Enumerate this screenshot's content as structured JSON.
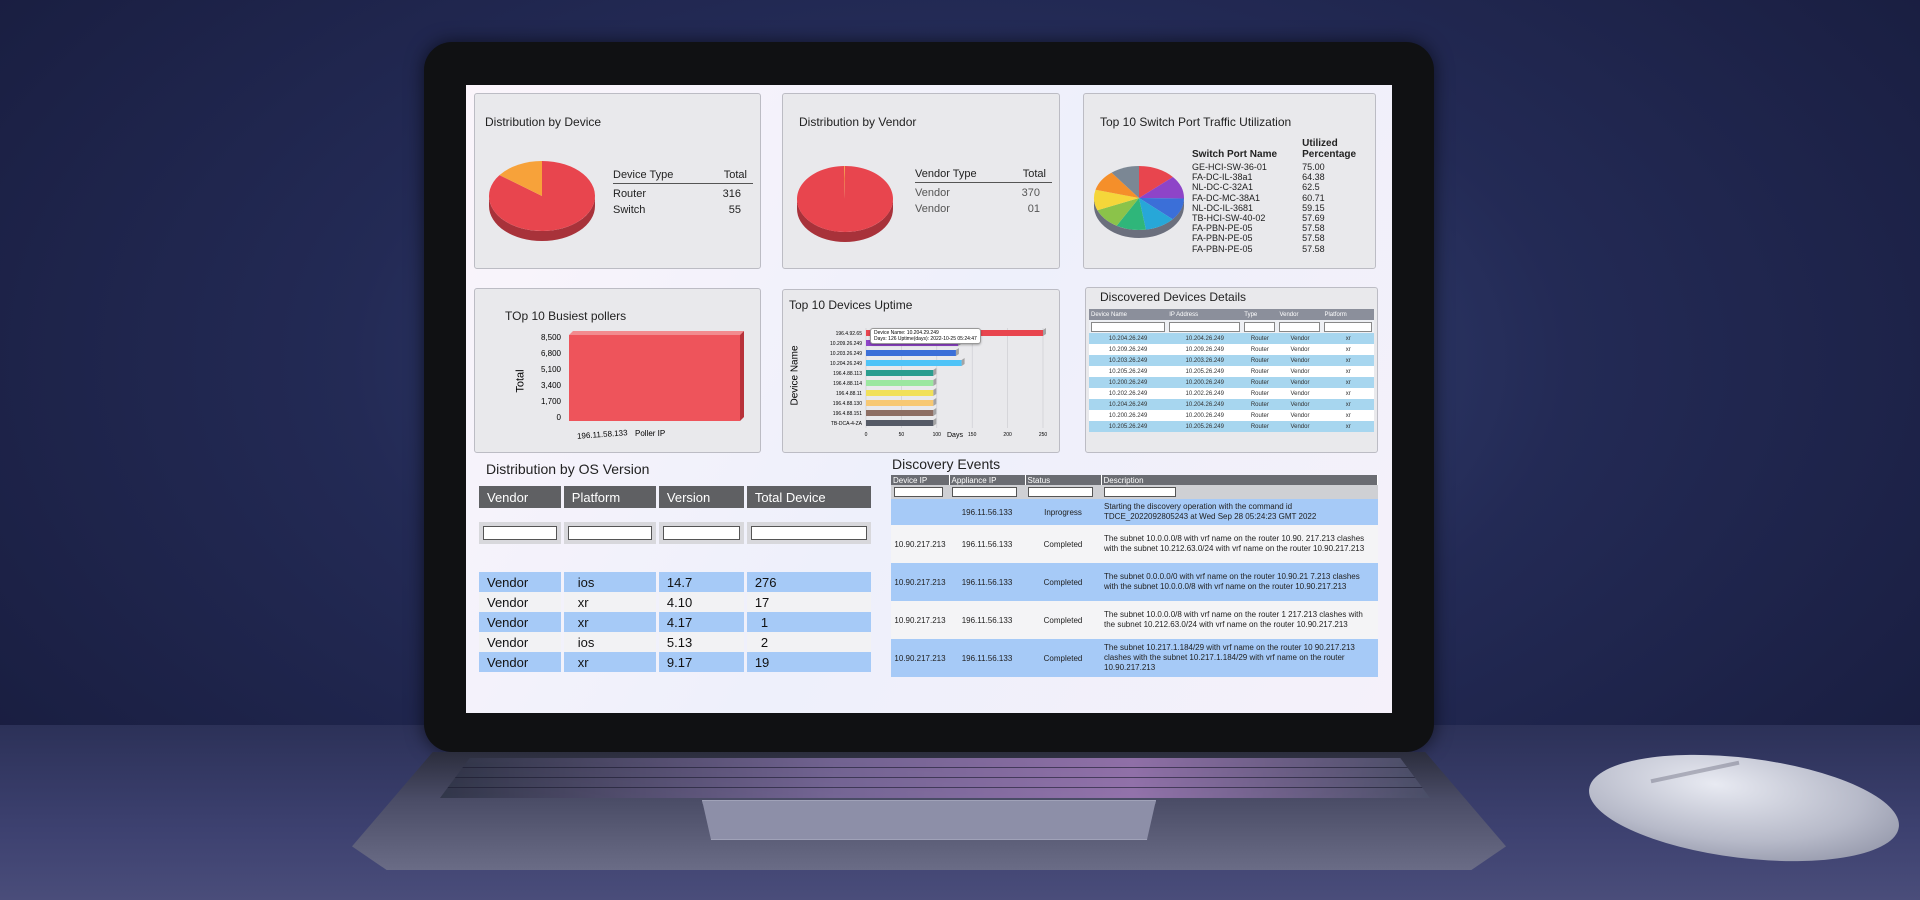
{
  "device_dist": {
    "title": "Distribution by Device",
    "col1": "Device Type",
    "col2": "Total",
    "rows": [
      {
        "type": "Router",
        "total": "316"
      },
      {
        "type": "Switch",
        "total": "55"
      }
    ]
  },
  "vendor_dist": {
    "title": "Distribution by Vendor",
    "col1": "Vendor Type",
    "col2": "Total",
    "rows": [
      {
        "type": "Vendor",
        "total": "370"
      },
      {
        "type": "Vendor",
        "total": "01"
      }
    ]
  },
  "switch_traffic": {
    "title": "Top 10 Switch Port Traffic Utilization",
    "col1": "Switch Port Name",
    "col2a": "Utilized",
    "col2b": "Percentage",
    "rows": [
      {
        "name": "GE-HCI-SW-36-01",
        "pct": "75.00"
      },
      {
        "name": "FA-DC-IL-38a1",
        "pct": "64.38"
      },
      {
        "name": "NL-DC-C-32A1",
        "pct": "62.5"
      },
      {
        "name": "FA-DC-MC-38A1",
        "pct": "60.71"
      },
      {
        "name": "NL-DC-IL-3681",
        "pct": "59.15"
      },
      {
        "name": "TB-HCI-SW-40-02",
        "pct": "57.69"
      },
      {
        "name": "FA-PBN-PE-05",
        "pct": "57.58"
      },
      {
        "name": "FA-PBN-PE-05",
        "pct": "57.58"
      },
      {
        "name": "FA-PBN-PE-05",
        "pct": "57.58"
      }
    ]
  },
  "busiest": {
    "title": "TOp 10 Busiest pollers",
    "ylabel": "Total",
    "xlabel": "Poller IP",
    "yticks": [
      "8,500",
      "6,800",
      "5,100",
      "3,400",
      "1,700",
      "0"
    ],
    "category": "196.11.58.133"
  },
  "uptime": {
    "title": "Top 10 Devices Uptime",
    "ylabel": "Device Name",
    "xlabel": "Days",
    "xticks": [
      "0",
      "50",
      "100",
      "150",
      "200",
      "250"
    ],
    "tooltip_line1": "Device Name: 10.204.29.249",
    "tooltip_line2": "Days: 126 Uptime(days): 2022-10-25 05:24:47"
  },
  "discovered": {
    "title": "Discovered Devices Details",
    "headers": [
      "Device Name",
      "IP Address",
      "Type",
      "Vendor",
      "Platform"
    ],
    "rows": [
      [
        "10.204.26.249",
        "10.204.26.249",
        "Router",
        "Vendor",
        "xr"
      ],
      [
        "10.209.26.249",
        "10.209.26.249",
        "Router",
        "Vendor",
        "xr"
      ],
      [
        "10.203.26.249",
        "10.203.26.249",
        "Router",
        "Vendor",
        "xr"
      ],
      [
        "10.205.26.249",
        "10.205.26.249",
        "Router",
        "Vendor",
        "xr"
      ],
      [
        "10.200.26.249",
        "10.200.26.249",
        "Router",
        "Vendor",
        "xr"
      ],
      [
        "10.202.26.249",
        "10.202.26.249",
        "Router",
        "Vendor",
        "xr"
      ],
      [
        "10.204.26.249",
        "10.204.26.249",
        "Router",
        "Vendor",
        "xr"
      ],
      [
        "10.200.26.249",
        "10.200.26.249",
        "Router",
        "Vendor",
        "xr"
      ],
      [
        "10.205.26.249",
        "10.205.26.249",
        "Router",
        "Vendor",
        "xr"
      ]
    ]
  },
  "os_dist": {
    "title": "Distribution by OS Version",
    "headers": [
      "Vendor",
      "Platform",
      "Version",
      "Total Device"
    ],
    "rows": [
      [
        "Vendor",
        "ios",
        "14.7",
        "276"
      ],
      [
        "Vendor",
        "xr",
        "4.10",
        "17"
      ],
      [
        "Vendor",
        "xr",
        "4.17",
        "1"
      ],
      [
        "Vendor",
        "ios",
        "5.13",
        "2"
      ],
      [
        "Vendor",
        "xr",
        "9.17",
        "19"
      ]
    ]
  },
  "events": {
    "title": "Discovery Events",
    "headers": [
      "Device IP",
      "Appliance IP",
      "Status",
      "Description"
    ],
    "rows": [
      {
        "device": "",
        "appliance": "196.11.56.133",
        "status": "Inprogress",
        "desc": "Starting the discovery operation with the command id TDCE_2022092805243 at Wed Sep 28 05:24:23 GMT 2022"
      },
      {
        "device": "10.90.217.213",
        "appliance": "196.11.56.133",
        "status": "Completed",
        "desc": "The subnet 10.0.0.0/8 with vrf name  on the router 10.90. 217.213 clashes with the subnet 10.212.63.0/24 with vrf name  on the router 10.90.217.213"
      },
      {
        "device": "10.90.217.213",
        "appliance": "196.11.56.133",
        "status": "Completed",
        "desc": "The subnet 0.0.0.0/0 with vrf name  on the router 10.90.21 7.213 clashes with the subnet 10.0.0.0/8 with vrf name  on the router 10.90.217.213"
      },
      {
        "device": "10.90.217.213",
        "appliance": "196.11.56.133",
        "status": "Completed",
        "desc": "The subnet 10.0.0.0/8 with vrf name  on the router 1 217.213 clashes with the subnet 10.212.63.0/24 with vrf name  on the router 10.90.217.213"
      },
      {
        "device": "10.90.217.213",
        "appliance": "196.11.56.133",
        "status": "Completed",
        "desc": "The subnet 10.217.1.184/29 with vrf name  on the router 10 90.217.213 clashes with the subnet 10.217.1.184/29 with vrf name  on the router 10.90.217.213"
      }
    ]
  },
  "chart_data": [
    {
      "type": "pie",
      "title": "Distribution by Device",
      "categories": [
        "Router",
        "Switch"
      ],
      "values": [
        316,
        55
      ],
      "colors": [
        "#e8454e",
        "#f7a23a"
      ]
    },
    {
      "type": "pie",
      "title": "Distribution by Vendor",
      "categories": [
        "Vendor",
        "Vendor"
      ],
      "values": [
        370,
        1
      ],
      "colors": [
        "#e8454e",
        "#f7a23a"
      ]
    },
    {
      "type": "pie",
      "title": "Top 10 Switch Port Traffic Utilization",
      "categories": [
        "GE-HCI-SW-36-01",
        "FA-DC-IL-38a1",
        "NL-DC-C-32A1",
        "FA-DC-MC-38A1",
        "NL-DC-IL-3681",
        "TB-HCI-SW-40-02",
        "FA-PBN-PE-05",
        "FA-PBN-PE-05",
        "FA-PBN-PE-05"
      ],
      "values": [
        75.0,
        64.38,
        62.5,
        60.71,
        59.15,
        57.69,
        57.58,
        57.58,
        57.58
      ],
      "colors": [
        "#e8454e",
        "#8e44c8",
        "#3b6fd8",
        "#27a7d8",
        "#2fb67a",
        "#8bc34a",
        "#f5d63a",
        "#f58f2a",
        "#7b8794"
      ]
    },
    {
      "type": "bar",
      "title": "TOp 10 Busiest pollers",
      "categories": [
        "196.11.58.133"
      ],
      "values": [
        8500
      ],
      "ylim": [
        0,
        8500
      ],
      "xlabel": "Poller IP",
      "ylabel": "Total",
      "colors": [
        "#ee545b"
      ]
    },
    {
      "type": "bar",
      "title": "Top 10 Devices Uptime",
      "orientation": "horizontal",
      "categories": [
        "196.4.92.65",
        "10.209.26.249",
        "10.203.26.249",
        "10.204.26.249",
        "196.4.88.113",
        "196.4.88.114",
        "196.4.88.11",
        "196.4.88.130",
        "196.4.88.151",
        "TB-DCA-4-ZA"
      ],
      "values": [
        250,
        130,
        127,
        135,
        95,
        95,
        95,
        95,
        95,
        95
      ],
      "xlim": [
        0,
        250
      ],
      "xlabel": "Days",
      "ylabel": "Device Name",
      "colors": [
        "#e8454e",
        "#8e44c8",
        "#3b6fd8",
        "#4fc3f7",
        "#2a9d8f",
        "#9be7a0",
        "#f1e05a",
        "#f7c873",
        "#8d6e63",
        "#555a66"
      ]
    }
  ]
}
